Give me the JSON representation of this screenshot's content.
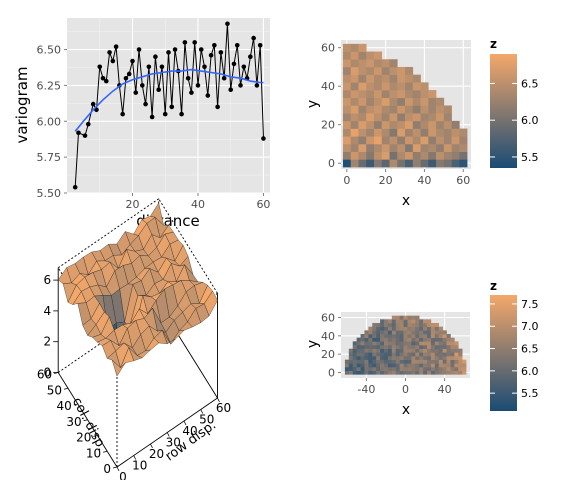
{
  "colors": {
    "low": "#1a4b74",
    "high": "#f5a86a",
    "panel_bg": "#e5e5e5",
    "grid": "#ffffff",
    "line": "#000000",
    "smooth": "#3366ff",
    "axis_text": "#4d4d4d"
  },
  "chart_data": [
    {
      "type": "line",
      "xlabel": "distance",
      "ylabel": "variogram",
      "xlim": [
        0,
        62
      ],
      "ylim": [
        5.5,
        6.72
      ],
      "xticks": [
        20,
        40,
        60
      ],
      "yticks": [
        5.5,
        5.75,
        6.0,
        6.25,
        6.5
      ],
      "ytick_labels": [
        "5.50",
        "5.75",
        "6.00",
        "6.25",
        "6.50"
      ],
      "grid": true,
      "series": [
        {
          "style": "points-and-line",
          "x": [
            2.5,
            3.5,
            5.5,
            6.5,
            8,
            9,
            10,
            11,
            12,
            13,
            14,
            15,
            16,
            17,
            18,
            19,
            20,
            21,
            22,
            23,
            24,
            25,
            26,
            27,
            28,
            29,
            30,
            31,
            32,
            33,
            34,
            35,
            36,
            37,
            38,
            39,
            40,
            41,
            42,
            43,
            44,
            45,
            46,
            47,
            48,
            49,
            50,
            51,
            52,
            53,
            54,
            55,
            56,
            57,
            58,
            59,
            60
          ],
          "y": [
            5.54,
            5.92,
            5.9,
            5.98,
            6.12,
            6.08,
            6.38,
            6.3,
            6.28,
            6.48,
            6.42,
            6.52,
            6.25,
            6.05,
            6.3,
            6.33,
            6.42,
            6.2,
            6.5,
            6.25,
            6.12,
            6.38,
            6.03,
            6.45,
            6.22,
            6.38,
            6.05,
            6.48,
            6.1,
            6.5,
            6.35,
            6.05,
            6.55,
            6.3,
            6.2,
            6.55,
            6.25,
            6.5,
            6.38,
            6.18,
            6.46,
            6.53,
            6.1,
            6.48,
            6.3,
            6.68,
            6.22,
            6.4,
            6.53,
            6.25,
            6.38,
            6.3,
            6.45,
            6.58,
            6.25,
            6.53,
            5.88
          ]
        },
        {
          "style": "smooth",
          "x": [
            2.5,
            5,
            8,
            11,
            14,
            17,
            20,
            23,
            26,
            29,
            32,
            35,
            38,
            41,
            44,
            47,
            50,
            53,
            56,
            59,
            60
          ],
          "y": [
            5.93,
            6.0,
            6.08,
            6.15,
            6.21,
            6.26,
            6.29,
            6.31,
            6.33,
            6.34,
            6.35,
            6.35,
            6.36,
            6.35,
            6.34,
            6.33,
            6.31,
            6.3,
            6.28,
            6.27,
            6.27
          ]
        }
      ]
    },
    {
      "type": "heatmap",
      "xlabel": "x",
      "ylabel": "y",
      "xlim": [
        -3,
        64
      ],
      "ylim": [
        -3,
        64
      ],
      "xticks": [
        0,
        20,
        40,
        60
      ],
      "yticks": [
        0,
        20,
        40,
        60
      ],
      "legend": {
        "title": "z",
        "ticks": [
          5.5,
          6.0,
          6.5
        ],
        "min": 5.35,
        "max": 6.9,
        "placement": "right"
      },
      "cell": 4,
      "rows": [
        [
          0,
          15,
          [
            5.4,
            6.3,
            5.9,
            5.6,
            6.1,
            5.8,
            6.4,
            6.0,
            5.7,
            6.2,
            5.9,
            5.6,
            6.1,
            6.0,
            5.7,
            5.5
          ]
        ],
        [
          4,
          15,
          [
            6.2,
            6.6,
            6.4,
            6.1,
            6.5,
            6.7,
            6.0,
            6.4,
            6.6,
            6.2,
            6.4,
            6.1,
            6.5,
            6.3,
            6.2,
            6.0
          ]
        ],
        [
          8,
          15,
          [
            6.5,
            6.3,
            6.7,
            6.2,
            6.4,
            6.6,
            6.3,
            6.5,
            6.1,
            6.7,
            6.3,
            6.4,
            6.2,
            6.6,
            6.3,
            6.4
          ]
        ],
        [
          12,
          15,
          [
            6.7,
            6.4,
            6.2,
            6.6,
            6.8,
            6.3,
            6.5,
            6.2,
            6.6,
            6.4,
            6.7,
            6.2,
            6.5,
            6.3,
            6.6,
            6.3
          ]
        ],
        [
          16,
          15,
          [
            6.4,
            6.8,
            6.5,
            6.3,
            6.6,
            6.4,
            6.1,
            6.7,
            6.3,
            6.5,
            6.2,
            6.6,
            6.4,
            6.3,
            6.5,
            6.4
          ]
        ],
        [
          20,
          15,
          [
            6.6,
            6.3,
            6.7,
            6.5,
            6.2,
            6.6,
            6.4,
            6.5,
            6.7,
            6.2,
            6.4,
            6.6,
            6.3,
            6.5,
            6.2
          ]
        ],
        [
          24,
          15,
          [
            6.3,
            6.5,
            6.4,
            6.7,
            6.5,
            6.3,
            6.6,
            6.2,
            6.5,
            6.6,
            6.3,
            6.4,
            6.6,
            6.3
          ]
        ],
        [
          28,
          15,
          [
            6.5,
            6.7,
            6.3,
            6.5,
            6.6,
            6.4,
            6.3,
            6.6,
            6.4,
            6.2,
            6.5,
            6.3,
            6.5,
            6.4
          ]
        ],
        [
          32,
          15,
          [
            6.6,
            6.4,
            6.6,
            6.3,
            6.5,
            6.7,
            6.4,
            6.2,
            6.6,
            6.4,
            6.6,
            6.3,
            6.4
          ]
        ],
        [
          36,
          15,
          [
            6.4,
            6.6,
            6.5,
            6.4,
            6.6,
            6.3,
            6.5,
            6.6,
            6.4,
            6.3,
            6.5,
            6.6
          ]
        ],
        [
          40,
          15,
          [
            6.6,
            6.3,
            6.7,
            6.5,
            6.4,
            6.6,
            6.4,
            6.5,
            6.3,
            6.6,
            6.5
          ]
        ],
        [
          44,
          15,
          [
            6.5,
            6.6,
            6.3,
            6.6,
            6.4,
            6.5,
            6.3,
            6.6,
            6.5,
            6.4
          ]
        ],
        [
          48,
          15,
          [
            6.3,
            6.7,
            6.5,
            6.4,
            6.6,
            6.3,
            6.5,
            6.6,
            6.4
          ]
        ],
        [
          52,
          15,
          [
            6.6,
            6.4,
            6.5,
            6.6,
            6.4,
            6.5,
            6.3
          ]
        ],
        [
          56,
          15,
          [
            6.4,
            6.6,
            6.3,
            6.5,
            6.6
          ]
        ],
        [
          60,
          15,
          [
            6.5,
            6.4,
            6.6
          ]
        ]
      ]
    },
    {
      "type": "surface",
      "xlabel": "row disp.",
      "ylabel": "col. disp.",
      "zticks": [
        0,
        2,
        4,
        6
      ],
      "xticks": [
        0,
        10,
        20,
        30,
        40,
        50,
        60
      ],
      "yticks": [
        0,
        10,
        20,
        30,
        40,
        50,
        60
      ]
    },
    {
      "type": "heatmap",
      "xlabel": "x",
      "ylabel": "y",
      "xlim": [
        -66,
        66
      ],
      "ylim": [
        -6,
        66
      ],
      "xticks": [
        -40,
        0,
        40
      ],
      "yticks": [
        0,
        20,
        40,
        60
      ],
      "legend": {
        "title": "z",
        "ticks": [
          5.5,
          6.0,
          6.5,
          7.0,
          7.5
        ],
        "min": 5.1,
        "max": 7.7,
        "placement": "right"
      },
      "cell": 4
    }
  ]
}
